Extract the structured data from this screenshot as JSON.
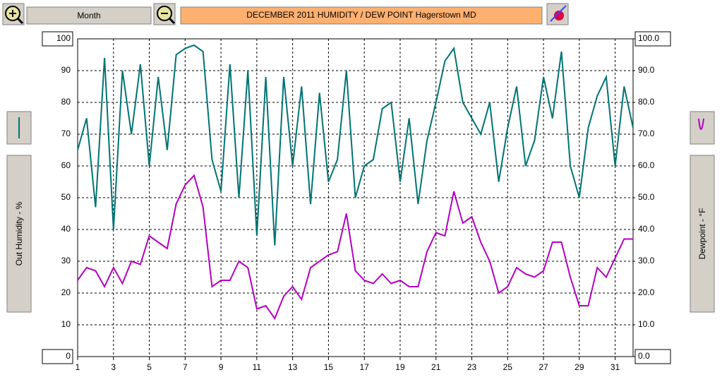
{
  "toolbar": {
    "period": "Month"
  },
  "chart_data": {
    "type": "line",
    "title": "DECEMBER 2011  HUMIDITY / DEW POINT  Hagerstown MD",
    "y_label": "Out Humidity - %",
    "y2_label": "Dewpoint - °F",
    "x": [
      1,
      1.5,
      2,
      2.5,
      3,
      3.5,
      4,
      4.5,
      5,
      5.5,
      6,
      6.5,
      7,
      7.5,
      8,
      8.5,
      9,
      9.5,
      10,
      10.5,
      11,
      11.5,
      12,
      12.5,
      13,
      13.5,
      14,
      14.5,
      15,
      15.5,
      16,
      16.5,
      17,
      17.5,
      18,
      18.5,
      19,
      19.5,
      20,
      20.5,
      21,
      21.5,
      22,
      22.5,
      23,
      23.5,
      24,
      24.5,
      25,
      25.5,
      26,
      26.5,
      27,
      27.5,
      28,
      28.5,
      29,
      29.5,
      30,
      30.5,
      31,
      31.5,
      32
    ],
    "xlim": [
      1,
      32
    ],
    "xticks": [
      1,
      3,
      5,
      7,
      9,
      11,
      13,
      15,
      17,
      19,
      21,
      23,
      25,
      27,
      29,
      31
    ],
    "ylim": [
      0,
      100
    ],
    "yticks": [
      0,
      10,
      20,
      30,
      40,
      50,
      60,
      70,
      80,
      90,
      100
    ],
    "y2lim": [
      0,
      100
    ],
    "y2ticks": [
      {
        "value": 0,
        "label": "0.0"
      },
      {
        "value": 10,
        "label": "10.0"
      },
      {
        "value": 20,
        "label": "20.0"
      },
      {
        "value": 30,
        "label": "30.0"
      },
      {
        "value": 40,
        "label": "40.0"
      },
      {
        "value": 50,
        "label": "50.0"
      },
      {
        "value": 60,
        "label": "60.0"
      },
      {
        "value": 70,
        "label": "70.0"
      },
      {
        "value": 80,
        "label": "80.0"
      },
      {
        "value": 90,
        "label": "90.0"
      },
      {
        "value": 100,
        "label": "100.0"
      }
    ],
    "grid": true,
    "series": [
      {
        "color": "#007373",
        "values": [
          65,
          75,
          47,
          94,
          40,
          90,
          70,
          92,
          60,
          88,
          65,
          95,
          97,
          98,
          96,
          62,
          52,
          92,
          50,
          90,
          38,
          88,
          35,
          88,
          60,
          85,
          48,
          83,
          55,
          62,
          90,
          50,
          60,
          62,
          78,
          80,
          55,
          75,
          48,
          68,
          80,
          93,
          97,
          80,
          75,
          70,
          80,
          55,
          72,
          85,
          60,
          68,
          88,
          75,
          96,
          60,
          50,
          72,
          82,
          88,
          60,
          85,
          72
        ]
      },
      {
        "color": "#b400c0",
        "axis": "y2",
        "values": [
          24,
          28,
          27,
          22,
          28,
          23,
          30,
          29,
          38,
          36,
          34,
          48,
          54,
          57,
          47,
          22,
          24,
          24,
          30,
          28,
          15,
          16,
          12,
          19,
          22,
          18,
          28,
          30,
          32,
          33,
          45,
          27,
          24,
          23,
          26,
          23,
          24,
          22,
          22,
          33,
          39,
          38,
          52,
          42,
          44,
          36,
          30,
          20,
          22,
          28,
          26,
          25,
          27,
          36,
          36,
          25,
          16,
          16,
          28,
          25,
          31,
          37,
          37
        ]
      }
    ]
  }
}
